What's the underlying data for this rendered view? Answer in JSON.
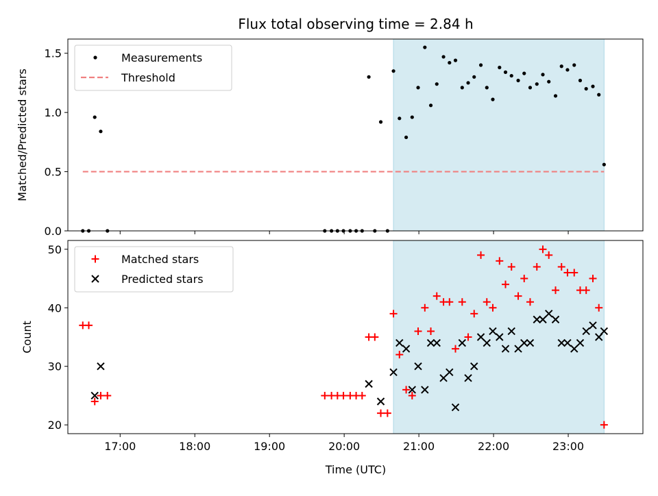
{
  "chart_data": {
    "title": "Flux total observing time = 2.84 h",
    "xlabel": "Time (UTC)",
    "xlim": [
      16.3,
      24.0
    ],
    "x_ticks": [
      {
        "value": 17,
        "label": "17:00"
      },
      {
        "value": 18,
        "label": "18:00"
      },
      {
        "value": 19,
        "label": "19:00"
      },
      {
        "value": 20,
        "label": "20:00"
      },
      {
        "value": 21,
        "label": "21:00"
      },
      {
        "value": 22,
        "label": "22:00"
      },
      {
        "value": 23,
        "label": "23:00"
      }
    ],
    "shaded_span": {
      "x_start": 20.66,
      "x_end": 23.48,
      "color": "#add8e6"
    },
    "panels": [
      {
        "type": "scatter",
        "ylabel": "Matched/Predicted stars",
        "ylim": [
          0.0,
          1.62
        ],
        "y_ticks": [
          {
            "value": 0.0,
            "label": "0.0"
          },
          {
            "value": 0.5,
            "label": "0.5"
          },
          {
            "value": 1.0,
            "label": "1.0"
          },
          {
            "value": 1.5,
            "label": "1.5"
          }
        ],
        "legend_position": "top-left",
        "series": [
          {
            "name": "Measurements",
            "marker": "dot",
            "color": "#000000",
            "points": [
              [
                16.5,
                0.0
              ],
              [
                16.58,
                0.0
              ],
              [
                16.66,
                0.96
              ],
              [
                16.74,
                0.84
              ],
              [
                16.83,
                0.0
              ],
              [
                19.74,
                0.0
              ],
              [
                19.83,
                0.0
              ],
              [
                19.91,
                0.0
              ],
              [
                19.99,
                0.0
              ],
              [
                20.08,
                0.0
              ],
              [
                20.16,
                0.0
              ],
              [
                20.24,
                0.0
              ],
              [
                20.33,
                1.3
              ],
              [
                20.41,
                0.0
              ],
              [
                20.49,
                0.92
              ],
              [
                20.58,
                0.0
              ],
              [
                20.66,
                1.35
              ],
              [
                20.74,
                0.95
              ],
              [
                20.83,
                0.79
              ],
              [
                20.91,
                0.96
              ],
              [
                20.99,
                1.21
              ],
              [
                21.08,
                1.55
              ],
              [
                21.16,
                1.06
              ],
              [
                21.24,
                1.24
              ],
              [
                21.33,
                1.47
              ],
              [
                21.41,
                1.42
              ],
              [
                21.49,
                1.44
              ],
              [
                21.58,
                1.21
              ],
              [
                21.66,
                1.25
              ],
              [
                21.74,
                1.3
              ],
              [
                21.83,
                1.4
              ],
              [
                21.91,
                1.21
              ],
              [
                21.99,
                1.11
              ],
              [
                22.08,
                1.38
              ],
              [
                22.16,
                1.34
              ],
              [
                22.24,
                1.31
              ],
              [
                22.33,
                1.27
              ],
              [
                22.41,
                1.33
              ],
              [
                22.49,
                1.21
              ],
              [
                22.58,
                1.24
              ],
              [
                22.66,
                1.32
              ],
              [
                22.74,
                1.26
              ],
              [
                22.83,
                1.14
              ],
              [
                22.91,
                1.39
              ],
              [
                22.99,
                1.36
              ],
              [
                23.08,
                1.4
              ],
              [
                23.16,
                1.27
              ],
              [
                23.24,
                1.2
              ],
              [
                23.33,
                1.22
              ],
              [
                23.41,
                1.15
              ],
              [
                23.48,
                0.56
              ]
            ]
          },
          {
            "name": "Threshold",
            "marker": "dashed-line",
            "color": "#f08080",
            "points": [
              [
                16.5,
                0.5
              ],
              [
                23.48,
                0.5
              ]
            ]
          }
        ]
      },
      {
        "type": "scatter",
        "ylabel": "Count",
        "ylim": [
          18.5,
          51.5
        ],
        "y_ticks": [
          {
            "value": 20,
            "label": "20"
          },
          {
            "value": 30,
            "label": "30"
          },
          {
            "value": 40,
            "label": "40"
          },
          {
            "value": 50,
            "label": "50"
          }
        ],
        "legend_position": "top-left",
        "series": [
          {
            "name": "Matched stars",
            "marker": "plus",
            "color": "#ff0000",
            "points": [
              [
                16.5,
                37
              ],
              [
                16.58,
                37
              ],
              [
                16.66,
                24
              ],
              [
                16.74,
                25
              ],
              [
                16.83,
                25
              ],
              [
                19.74,
                25
              ],
              [
                19.83,
                25
              ],
              [
                19.91,
                25
              ],
              [
                19.99,
                25
              ],
              [
                20.08,
                25
              ],
              [
                20.16,
                25
              ],
              [
                20.24,
                25
              ],
              [
                20.33,
                35
              ],
              [
                20.41,
                35
              ],
              [
                20.49,
                22
              ],
              [
                20.58,
                22
              ],
              [
                20.66,
                39
              ],
              [
                20.74,
                32
              ],
              [
                20.83,
                26
              ],
              [
                20.91,
                25
              ],
              [
                20.99,
                36
              ],
              [
                21.08,
                40
              ],
              [
                21.16,
                36
              ],
              [
                21.24,
                42
              ],
              [
                21.33,
                41
              ],
              [
                21.41,
                41
              ],
              [
                21.49,
                33
              ],
              [
                21.58,
                41
              ],
              [
                21.66,
                35
              ],
              [
                21.74,
                39
              ],
              [
                21.83,
                49
              ],
              [
                21.91,
                41
              ],
              [
                21.99,
                40
              ],
              [
                22.08,
                48
              ],
              [
                22.16,
                44
              ],
              [
                22.24,
                47
              ],
              [
                22.33,
                42
              ],
              [
                22.41,
                45
              ],
              [
                22.49,
                41
              ],
              [
                22.58,
                47
              ],
              [
                22.66,
                50
              ],
              [
                22.74,
                49
              ],
              [
                22.83,
                43
              ],
              [
                22.91,
                47
              ],
              [
                22.99,
                46
              ],
              [
                23.08,
                46
              ],
              [
                23.16,
                43
              ],
              [
                23.24,
                43
              ],
              [
                23.33,
                45
              ],
              [
                23.41,
                40
              ],
              [
                23.48,
                20
              ]
            ]
          },
          {
            "name": "Predicted stars",
            "marker": "x",
            "color": "#000000",
            "points": [
              [
                16.66,
                25
              ],
              [
                16.74,
                30
              ],
              [
                20.33,
                27
              ],
              [
                20.49,
                24
              ],
              [
                20.66,
                29
              ],
              [
                20.74,
                34
              ],
              [
                20.83,
                33
              ],
              [
                20.91,
                26
              ],
              [
                20.99,
                30
              ],
              [
                21.08,
                26
              ],
              [
                21.16,
                34
              ],
              [
                21.24,
                34
              ],
              [
                21.33,
                28
              ],
              [
                21.41,
                29
              ],
              [
                21.49,
                23
              ],
              [
                21.58,
                34
              ],
              [
                21.66,
                28
              ],
              [
                21.74,
                30
              ],
              [
                21.83,
                35
              ],
              [
                21.91,
                34
              ],
              [
                21.99,
                36
              ],
              [
                22.08,
                35
              ],
              [
                22.16,
                33
              ],
              [
                22.24,
                36
              ],
              [
                22.33,
                33
              ],
              [
                22.41,
                34
              ],
              [
                22.49,
                34
              ],
              [
                22.58,
                38
              ],
              [
                22.66,
                38
              ],
              [
                22.74,
                39
              ],
              [
                22.83,
                38
              ],
              [
                22.91,
                34
              ],
              [
                22.99,
                34
              ],
              [
                23.08,
                33
              ],
              [
                23.16,
                34
              ],
              [
                23.24,
                36
              ],
              [
                23.33,
                37
              ],
              [
                23.41,
                35
              ],
              [
                23.48,
                36
              ]
            ]
          }
        ]
      }
    ]
  }
}
